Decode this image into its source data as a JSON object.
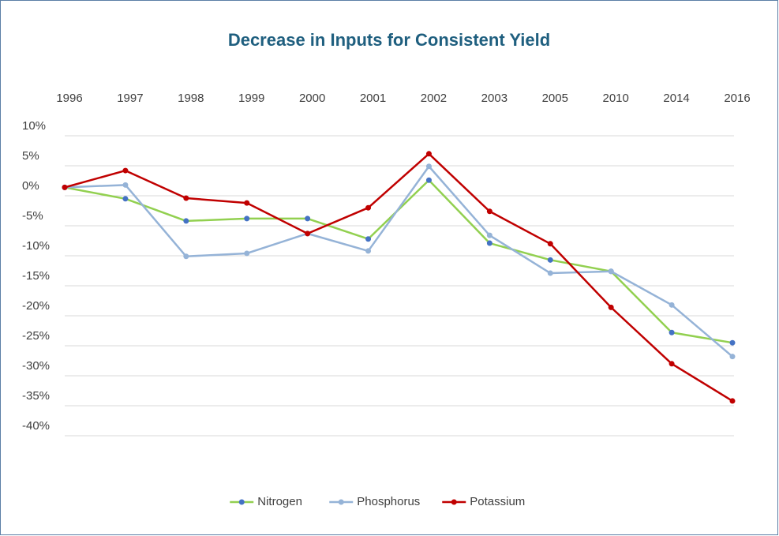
{
  "chart_data": {
    "type": "line",
    "title": "Decrease in Inputs for Consistent Yield",
    "categories": [
      "1996",
      "1997",
      "1998",
      "1999",
      "2000",
      "2001",
      "2002",
      "2003",
      "2005",
      "2010",
      "2014",
      "2016"
    ],
    "series": [
      {
        "name": "Nitrogen",
        "color": "#92d050",
        "marker_color": "#4472c4",
        "values": [
          1.4,
          -0.5,
          -4.2,
          -3.8,
          -3.8,
          -7.2,
          2.6,
          -7.9,
          -10.7,
          -12.6,
          -22.8,
          -24.5
        ]
      },
      {
        "name": "Phosphorus",
        "color": "#95b3d7",
        "marker_color": "#95b3d7",
        "values": [
          1.4,
          1.8,
          -10.1,
          -9.6,
          -6.3,
          -9.2,
          4.9,
          -6.6,
          -12.9,
          -12.6,
          -18.2,
          -26.8
        ]
      },
      {
        "name": "Potassium",
        "color": "#c00000",
        "marker_color": "#c00000",
        "values": [
          1.4,
          4.2,
          -0.4,
          -1.2,
          -6.3,
          -2.0,
          7.0,
          -2.6,
          -8.0,
          -18.6,
          -28.0,
          -34.2
        ]
      }
    ],
    "ylim": [
      -40,
      10
    ],
    "yticks": [
      {
        "value": 10,
        "label": "10%"
      },
      {
        "value": 5,
        "label": "5%"
      },
      {
        "value": 0,
        "label": "0%"
      },
      {
        "value": -5,
        "label": "-5%"
      },
      {
        "value": -10,
        "label": "-10%"
      },
      {
        "value": -15,
        "label": "-15%"
      },
      {
        "value": -20,
        "label": "-20%"
      },
      {
        "value": -25,
        "label": "-25%"
      },
      {
        "value": -30,
        "label": "-30%"
      },
      {
        "value": -35,
        "label": "-35%"
      },
      {
        "value": -40,
        "label": "-40%"
      }
    ],
    "grid": true,
    "legend": "bottom"
  }
}
